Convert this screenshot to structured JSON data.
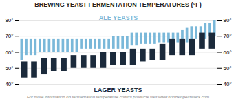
{
  "chart_data": {
    "type": "bar",
    "title": "BREWING YEAST FERMENTATION TEMPERATURES (°F)",
    "series": [
      {
        "name": "ALE YEASTS",
        "color": "#7ab8d9",
        "values": [
          [
            55,
            68
          ],
          [
            58,
            68
          ],
          [
            58,
            68
          ],
          [
            58,
            68
          ],
          [
            60,
            68
          ],
          [
            60,
            68
          ],
          [
            60,
            68
          ],
          [
            60,
            68
          ],
          [
            60,
            68
          ],
          [
            60,
            68
          ],
          [
            60,
            68
          ],
          [
            60,
            68
          ],
          [
            60,
            68
          ],
          [
            62,
            68
          ],
          [
            62,
            68
          ],
          [
            62,
            68
          ],
          [
            62,
            68
          ],
          [
            62,
            68
          ],
          [
            62,
            68
          ],
          [
            62,
            68
          ],
          [
            62,
            70
          ],
          [
            62,
            70
          ],
          [
            62,
            70
          ],
          [
            62,
            70
          ],
          [
            64,
            72
          ],
          [
            64,
            72
          ],
          [
            65,
            72
          ],
          [
            65,
            72
          ],
          [
            65,
            72
          ],
          [
            65,
            72
          ],
          [
            66,
            72
          ],
          [
            66,
            72
          ],
          [
            66,
            72
          ],
          [
            66,
            72
          ],
          [
            66,
            72
          ],
          [
            66,
            74
          ],
          [
            66,
            75
          ],
          [
            66,
            76
          ],
          [
            68,
            76
          ],
          [
            68,
            76
          ],
          [
            68,
            78
          ],
          [
            70,
            78
          ],
          [
            70,
            80
          ]
        ]
      },
      {
        "name": "LAGER YEASTS",
        "color": "#1b2a3b",
        "values": [
          [
            44,
            54
          ],
          [
            44,
            54
          ],
          [
            46,
            56
          ],
          [
            48,
            56
          ],
          [
            48,
            56
          ],
          [
            50,
            58
          ],
          [
            50,
            58
          ],
          [
            50,
            58
          ],
          [
            50,
            60
          ],
          [
            52,
            60
          ],
          [
            52,
            60
          ],
          [
            52,
            62
          ],
          [
            54,
            62
          ],
          [
            55,
            62
          ],
          [
            55,
            65
          ],
          [
            58,
            68
          ],
          [
            58,
            68
          ],
          [
            58,
            68
          ],
          [
            62,
            72
          ],
          [
            62,
            72
          ]
        ]
      }
    ],
    "annotations": [
      "For more information on fermentation temperature control products visit www.northslopechillers.com"
    ],
    "ylim": [
      40,
      80
    ],
    "yticks": [
      {
        "value": 40,
        "label": "40°"
      },
      {
        "value": 50,
        "label": "50°"
      },
      {
        "value": 60,
        "label": "60°"
      },
      {
        "value": 70,
        "label": "70°"
      },
      {
        "value": 80,
        "label": "80°"
      }
    ],
    "grid": true,
    "tick_labels": "y"
  }
}
